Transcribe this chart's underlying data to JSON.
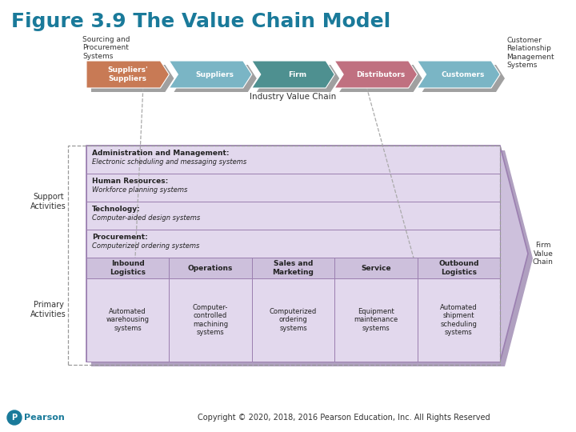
{
  "title": "Figure 3.9 The Value Chain Model",
  "title_color": "#1a7a9a",
  "title_fontsize": 18,
  "bg_color": "#ffffff",
  "support_label": "Support\nActivities",
  "primary_label": "Primary\nActivities",
  "firm_value_chain_label": "Firm\nValue\nChain",
  "support_rows": [
    {
      "bold": "Administration and Management:",
      "normal": "Electronic scheduling and messaging systems"
    },
    {
      "bold": "Human Resources:",
      "normal": "Workforce planning systems"
    },
    {
      "bold": "Technology:",
      "normal": "Computer-aided design systems"
    },
    {
      "bold": "Procurement:",
      "normal": "Computerized ordering systems"
    }
  ],
  "primary_cols": [
    {
      "header": "Inbound\nLogistics",
      "body": "Automated\nwarehousing\nsystems"
    },
    {
      "header": "Operations",
      "body": "Computer-\ncontrolled\nmachining\nsystems"
    },
    {
      "header": "Sales and\nMarketing",
      "body": "Computerized\nordering\nsystems"
    },
    {
      "header": "Service",
      "body": "Equipment\nmaintenance\nsystems"
    },
    {
      "header": "Outbound\nLogistics",
      "body": "Automated\nshipment\nscheduling\nsystems"
    }
  ],
  "main_box_fill": "#cdc0dc",
  "main_box_border": "#9b7fb0",
  "support_row_fill": "#e2d8ed",
  "primary_header_fill": "#cdc0dc",
  "primary_body_fill": "#e2d8ed",
  "grid_line_color": "#9b7fb0",
  "dashed_border_color": "#999999",
  "industry_chain_items": [
    {
      "label": "Suppliers'\nSuppliers",
      "color": "#c87a55"
    },
    {
      "label": "Suppliers",
      "color": "#7ab5c5"
    },
    {
      "label": "Firm",
      "color": "#4e9090"
    },
    {
      "label": "Distributors",
      "color": "#c07080"
    },
    {
      "label": "Customers",
      "color": "#7ab5c5"
    }
  ],
  "industry_chain_label": "Industry Value Chain",
  "sourcing_text": "Sourcing and\nProcurement\nSystems",
  "crm_text": "Customer\nRelationship\nManagement\nSystems",
  "copyright_text": "Copyright © 2020, 2018, 2016 Pearson Education, Inc. All Rights Reserved",
  "pearson_color": "#1a7a9a"
}
